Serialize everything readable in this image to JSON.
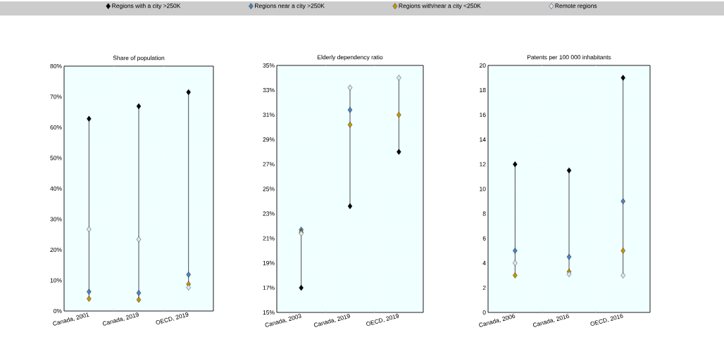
{
  "chart_data": [
    {
      "type": "scatter",
      "title": "Share of population",
      "categories": [
        "Canada, 2001",
        "Canada, 2019",
        "OECD, 2019"
      ],
      "marker": "diamond",
      "grid": true,
      "legend": "top",
      "ylim": [
        0,
        80
      ],
      "yticks": [
        {
          "value": 0,
          "label": "0%"
        },
        {
          "value": 10,
          "label": "10%"
        },
        {
          "value": 20,
          "label": "20%"
        },
        {
          "value": 30,
          "label": "30%"
        },
        {
          "value": 40,
          "label": "40%"
        },
        {
          "value": 50,
          "label": "50%"
        },
        {
          "value": 60,
          "label": "60%"
        },
        {
          "value": 70,
          "label": "70%"
        },
        {
          "value": 80,
          "label": "80%"
        }
      ],
      "series": [
        {
          "name": "Regions with a city >250K",
          "color": "#000000",
          "values": [
            62.8,
            66.9,
            71.5
          ]
        },
        {
          "name": "Regions near a city >250K",
          "color": "#4f81bd",
          "values": [
            6.3,
            5.9,
            11.9
          ]
        },
        {
          "name": "Regions with/near a city <250K",
          "color": "#c89600",
          "values": [
            4.0,
            3.7,
            8.8
          ]
        },
        {
          "name": "Remote regions",
          "color": "#dce6f2",
          "values": [
            26.7,
            23.4,
            7.7
          ]
        }
      ]
    },
    {
      "type": "scatter",
      "title": "Elderly dependency ratio",
      "categories": [
        "Canada, 2003",
        "Canada, 2019",
        "OECD, 2019"
      ],
      "marker": "diamond",
      "grid": true,
      "ylim": [
        15,
        35
      ],
      "yticks": [
        {
          "value": 15,
          "label": "15%"
        },
        {
          "value": 17,
          "label": "17%"
        },
        {
          "value": 19,
          "label": "19%"
        },
        {
          "value": 21,
          "label": "21%"
        },
        {
          "value": 23,
          "label": "23%"
        },
        {
          "value": 25,
          "label": "25%"
        },
        {
          "value": 27,
          "label": "27%"
        },
        {
          "value": 29,
          "label": "29%"
        },
        {
          "value": 31,
          "label": "31%"
        },
        {
          "value": 33,
          "label": "33%"
        },
        {
          "value": 35,
          "label": "35%"
        }
      ],
      "series": [
        {
          "color": "#000000",
          "values": [
            17.0,
            23.6,
            28.0
          ]
        },
        {
          "color": "#4f81bd",
          "values": [
            21.7,
            31.4,
            null
          ]
        },
        {
          "color": "#c89600",
          "values": [
            21.5,
            30.2,
            31.0
          ]
        },
        {
          "color": "#dce6f2",
          "values": [
            21.4,
            33.2,
            34.0
          ]
        }
      ]
    },
    {
      "type": "scatter",
      "title": "Patents per 100 000 inhabitants",
      "categories": [
        "Canada, 2006",
        "Canada, 2016",
        "OECD, 2016"
      ],
      "marker": "diamond",
      "grid": true,
      "ylim": [
        0,
        20
      ],
      "yticks": [
        0,
        2,
        4,
        6,
        8,
        10,
        12,
        14,
        16,
        18,
        20
      ],
      "series": [
        {
          "color": "#000000",
          "values": [
            12.0,
            11.5,
            19.0
          ]
        },
        {
          "color": "#4f81bd",
          "values": [
            5.0,
            4.5,
            9.0
          ]
        },
        {
          "color": "#c89600",
          "values": [
            3.0,
            3.3,
            5.0
          ]
        },
        {
          "color": "#dce6f2",
          "values": [
            4.0,
            3.1,
            3.0
          ]
        }
      ]
    }
  ]
}
